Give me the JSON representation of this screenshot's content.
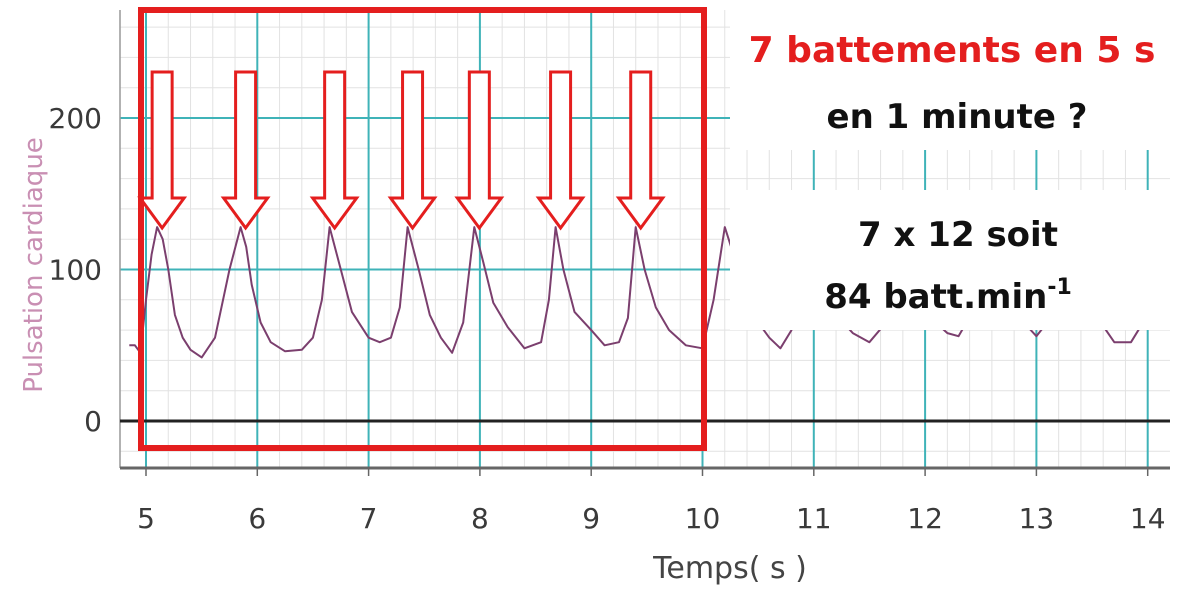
{
  "chart_data": {
    "type": "line",
    "xlabel": "Temps( s )",
    "ylabel": "Pulsation cardiaque",
    "xlim": [
      4.85,
      14.2
    ],
    "ylim": [
      -30,
      265
    ],
    "x_ticks": [
      "5",
      "6",
      "7",
      "8",
      "9",
      "10",
      "11",
      "12",
      "13",
      "14"
    ],
    "y_ticks": [
      "0",
      "100",
      "200"
    ],
    "grid": true,
    "series": [
      {
        "color": "#7b3f6e",
        "x": [
          4.85,
          4.9,
          4.95,
          5.0,
          5.05,
          5.1,
          5.15,
          5.2,
          5.26,
          5.33,
          5.4,
          5.5,
          5.62,
          5.75,
          5.85,
          5.9,
          5.95,
          6.03,
          6.12,
          6.25,
          6.4,
          6.5,
          6.58,
          6.65,
          6.75,
          6.85,
          7.0,
          7.1,
          7.2,
          7.28,
          7.35,
          7.45,
          7.55,
          7.65,
          7.75,
          7.85,
          7.95,
          8.03,
          8.12,
          8.25,
          8.4,
          8.55,
          8.62,
          8.68,
          8.75,
          8.85,
          9.0,
          9.12,
          9.25,
          9.33,
          9.4,
          9.48,
          9.58,
          9.7,
          9.85,
          10.0
        ],
        "y": [
          50,
          50,
          45,
          80,
          110,
          128,
          120,
          100,
          70,
          55,
          47,
          42,
          55,
          100,
          128,
          115,
          90,
          65,
          52,
          46,
          47,
          55,
          80,
          128,
          100,
          72,
          55,
          52,
          55,
          75,
          128,
          100,
          70,
          55,
          45,
          65,
          128,
          105,
          78,
          62,
          48,
          52,
          80,
          128,
          100,
          72,
          60,
          50,
          52,
          68,
          128,
          100,
          75,
          60,
          50,
          48
        ]
      }
    ],
    "annotations": [
      {
        "text": "7 battements  en 5 s",
        "color": "#e41e1e"
      },
      {
        "text": "en 1 minute ?",
        "color": "#111111"
      },
      {
        "text": "7 x 12 soit",
        "color": "#111111"
      },
      {
        "text": "84 batt.min",
        "color": "#111111"
      },
      {
        "text": "-1",
        "color": "#111111"
      }
    ],
    "highlight": {
      "x_range": [
        4.95,
        10.0
      ],
      "color": "#e41e1e"
    },
    "arrow_count": 7,
    "gridline_color": "#3fb3b8",
    "minor_grid_color": "#e2e2e2"
  }
}
